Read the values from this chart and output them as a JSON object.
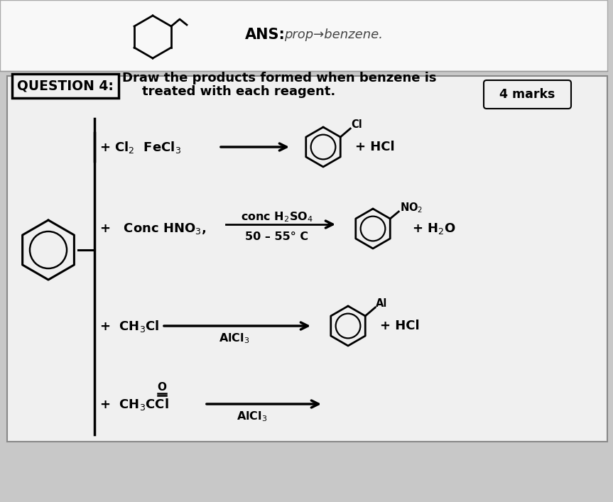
{
  "bg_color": "#c8c8c8",
  "paper_color": "#f2f2f2",
  "white_color": "#ffffff",
  "font_color": "#111111",
  "title_text": "QUESTION 4:",
  "subtitle_line1": "Draw the products formed when benzene is",
  "subtitle_line2": "treated with each reagent.",
  "marks_text": "4 marks",
  "ans_label": "ANS:",
  "ans_text": "prop→benzene.",
  "row1_left": "+ Cl₂  FeCl₃",
  "row1_right": "+ HCl",
  "row1_sub": "Cl",
  "row2_left": "+   Conc HNO₃,",
  "row2_cond_top": "conc H₂SO₄",
  "row2_cond_bot": "50 – 55° C",
  "row2_right": "+ H₂O",
  "row2_sub": "NO₂",
  "row3_left": "+  CH₃Cl",
  "row3_cond": "AlCl₃",
  "row3_right": "+ HCl",
  "row3_sub": "Al",
  "row4_left": "+  CH₃CCl",
  "row4_cond": "AlCl₃",
  "row4_o": "O"
}
